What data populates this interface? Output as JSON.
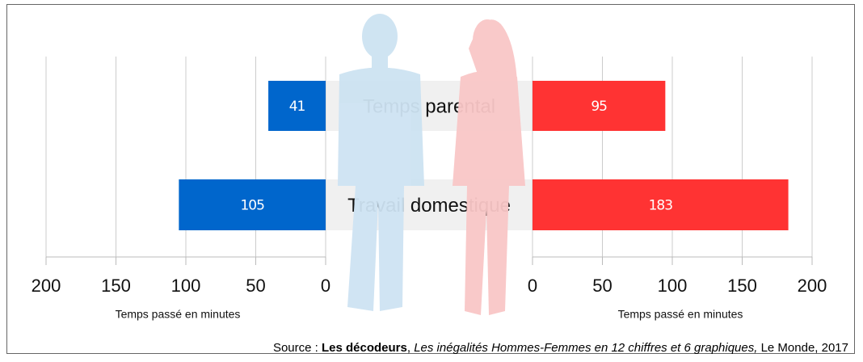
{
  "chart_data": {
    "type": "butterfly",
    "categories": [
      "Temps parental",
      "Travail domestique"
    ],
    "series": [
      {
        "color": "#0066cc",
        "values": [
          41,
          105
        ],
        "xlim": [
          200,
          0
        ]
      },
      {
        "color": "#ff3333",
        "values": [
          95,
          183
        ],
        "xlim": [
          0,
          200
        ]
      }
    ],
    "xticks": [
      0,
      50,
      100,
      150,
      200
    ],
    "xlabel": "Temps passé en minutes",
    "grid": true,
    "source": [
      "Source : ",
      "Les décodeurs",
      ", ",
      "Les inégalités Hommes-Femmes en 12 chiffres et 6 graphiques,",
      " Le Monde, 2017"
    ]
  }
}
